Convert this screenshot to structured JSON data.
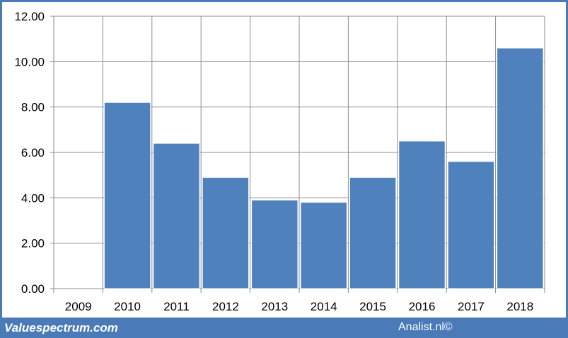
{
  "chart_data": {
    "type": "bar",
    "categories": [
      "2009",
      "2010",
      "2011",
      "2012",
      "2013",
      "2014",
      "2015",
      "2016",
      "2017",
      "2018"
    ],
    "values": [
      null,
      8.2,
      6.4,
      4.9,
      3.9,
      3.8,
      4.9,
      6.5,
      5.6,
      10.6
    ],
    "yticks": [
      "0.00",
      "2.00",
      "4.00",
      "6.00",
      "8.00",
      "10.00",
      "12.00"
    ],
    "ylim": [
      0,
      12
    ],
    "grid": true,
    "bar_color": "#4f81bd"
  },
  "footer": {
    "left": "Valuespectrum.com",
    "right": "Analist.nl©"
  }
}
